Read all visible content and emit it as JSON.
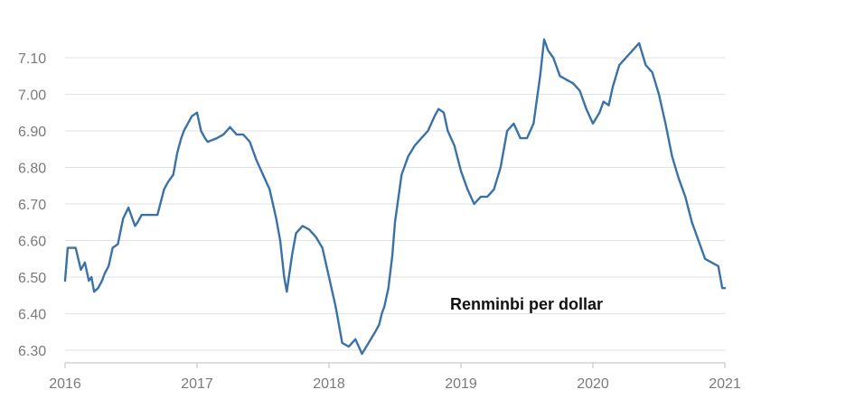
{
  "chart_data": {
    "type": "line",
    "title": "",
    "annotation": "Renminbi per dollar",
    "xlabel": "",
    "ylabel": "",
    "xlim": [
      2016.0,
      2021.0
    ],
    "ylim": [
      6.28,
      7.14
    ],
    "x_ticks": [
      2016,
      2017,
      2018,
      2019,
      2020,
      2021
    ],
    "x_tick_labels": [
      "2016",
      "2017",
      "2018",
      "2019",
      "2020",
      "2021"
    ],
    "y_ticks": [
      6.3,
      6.4,
      6.5,
      6.6,
      6.7,
      6.8,
      6.9,
      7.0,
      7.1
    ],
    "y_tick_labels": [
      "6.30",
      "6.40",
      "6.50",
      "6.60",
      "6.70",
      "6.80",
      "6.90",
      "7.00",
      "7.10"
    ],
    "grid": true,
    "colors": {
      "line": "#3a72a8",
      "grid": "#e2e2e2",
      "text": "#7a7a7a"
    },
    "series": [
      {
        "x": [
          2016.0,
          2016.02,
          2016.08,
          2016.12,
          2016.15,
          2016.18,
          2016.2,
          2016.22,
          2016.25,
          2016.28,
          2016.3,
          2016.33,
          2016.36,
          2016.4,
          2016.44,
          2016.48,
          2016.5,
          2016.53,
          2016.55,
          2016.58,
          2016.62,
          2016.65,
          2016.7,
          2016.75,
          2016.78,
          2016.82,
          2016.85,
          2016.88,
          2016.9,
          2016.93,
          2016.96,
          2017.0,
          2017.03,
          2017.06,
          2017.08,
          2017.15,
          2017.2,
          2017.25,
          2017.3,
          2017.35,
          2017.4,
          2017.45,
          2017.5,
          2017.55,
          2017.6,
          2017.63,
          2017.66,
          2017.68,
          2017.72,
          2017.75,
          2017.8,
          2017.85,
          2017.9,
          2017.95,
          2018.0,
          2018.05,
          2018.1,
          2018.15,
          2018.2,
          2018.25,
          2018.3,
          2018.35,
          2018.38,
          2018.4,
          2018.42,
          2018.45,
          2018.48,
          2018.5,
          2018.55,
          2018.6,
          2018.65,
          2018.7,
          2018.75,
          2018.8,
          2018.83,
          2018.87,
          2018.9,
          2018.95,
          2019.0,
          2019.05,
          2019.1,
          2019.15,
          2019.2,
          2019.25,
          2019.3,
          2019.35,
          2019.4,
          2019.45,
          2019.5,
          2019.55,
          2019.6,
          2019.63,
          2019.66,
          2019.7,
          2019.75,
          2019.8,
          2019.85,
          2019.9,
          2019.95,
          2020.0,
          2020.05,
          2020.08,
          2020.12,
          2020.15,
          2020.2,
          2020.25,
          2020.3,
          2020.35,
          2020.4,
          2020.45,
          2020.5,
          2020.55,
          2020.6,
          2020.65,
          2020.7,
          2020.75,
          2020.8,
          2020.85,
          2020.9,
          2020.95,
          2020.98,
          2021.0
        ],
        "y": [
          6.49,
          6.58,
          6.58,
          6.52,
          6.54,
          6.49,
          6.5,
          6.46,
          6.47,
          6.49,
          6.51,
          6.53,
          6.58,
          6.59,
          6.66,
          6.69,
          6.67,
          6.64,
          6.65,
          6.67,
          6.67,
          6.67,
          6.67,
          6.74,
          6.76,
          6.78,
          6.84,
          6.88,
          6.9,
          6.92,
          6.94,
          6.95,
          6.9,
          6.88,
          6.87,
          6.88,
          6.89,
          6.91,
          6.89,
          6.89,
          6.87,
          6.82,
          6.78,
          6.74,
          6.66,
          6.6,
          6.5,
          6.46,
          6.56,
          6.62,
          6.64,
          6.63,
          6.61,
          6.58,
          6.5,
          6.42,
          6.32,
          6.31,
          6.33,
          6.29,
          6.32,
          6.35,
          6.37,
          6.4,
          6.42,
          6.47,
          6.56,
          6.65,
          6.78,
          6.83,
          6.86,
          6.88,
          6.9,
          6.94,
          6.96,
          6.95,
          6.9,
          6.86,
          6.79,
          6.74,
          6.7,
          6.72,
          6.72,
          6.74,
          6.8,
          6.9,
          6.92,
          6.88,
          6.88,
          6.92,
          7.05,
          7.15,
          7.12,
          7.1,
          7.05,
          7.04,
          7.03,
          7.01,
          6.96,
          6.92,
          6.95,
          6.98,
          6.97,
          7.02,
          7.08,
          7.1,
          7.12,
          7.14,
          7.08,
          7.06,
          7.0,
          6.92,
          6.83,
          6.77,
          6.72,
          6.65,
          6.6,
          6.55,
          6.54,
          6.53,
          6.47,
          6.47
        ]
      }
    ]
  }
}
